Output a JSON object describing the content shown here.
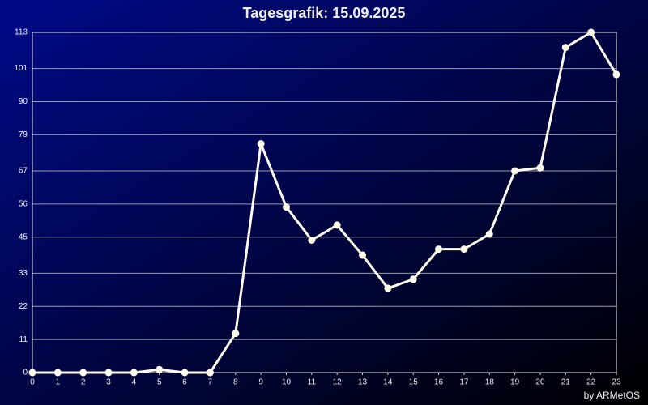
{
  "chart_data": {
    "type": "line",
    "title": "Tagesgrafik: 15.09.2025",
    "credit": "by ARMetOS",
    "x": [
      0,
      1,
      2,
      3,
      4,
      5,
      6,
      7,
      8,
      9,
      10,
      11,
      12,
      13,
      14,
      15,
      16,
      17,
      18,
      19,
      20,
      21,
      22,
      23
    ],
    "series": [
      {
        "color": "#fffbea",
        "values": [
          0,
          0,
          0,
          0,
          0,
          1,
          0,
          0,
          13,
          76,
          55,
          44,
          49,
          39,
          28,
          31,
          41,
          41,
          46,
          67,
          68,
          108,
          113,
          99
        ]
      }
    ],
    "xlim": [
      0,
      23
    ],
    "xticks": [
      0,
      1,
      2,
      3,
      4,
      5,
      6,
      7,
      8,
      9,
      10,
      11,
      12,
      13,
      14,
      15,
      16,
      17,
      18,
      19,
      20,
      21,
      22,
      23
    ],
    "ylim": [
      0,
      113
    ],
    "yticks": [
      0,
      11,
      22,
      33,
      45,
      56,
      67,
      79,
      90,
      101,
      113
    ],
    "grid": true
  }
}
